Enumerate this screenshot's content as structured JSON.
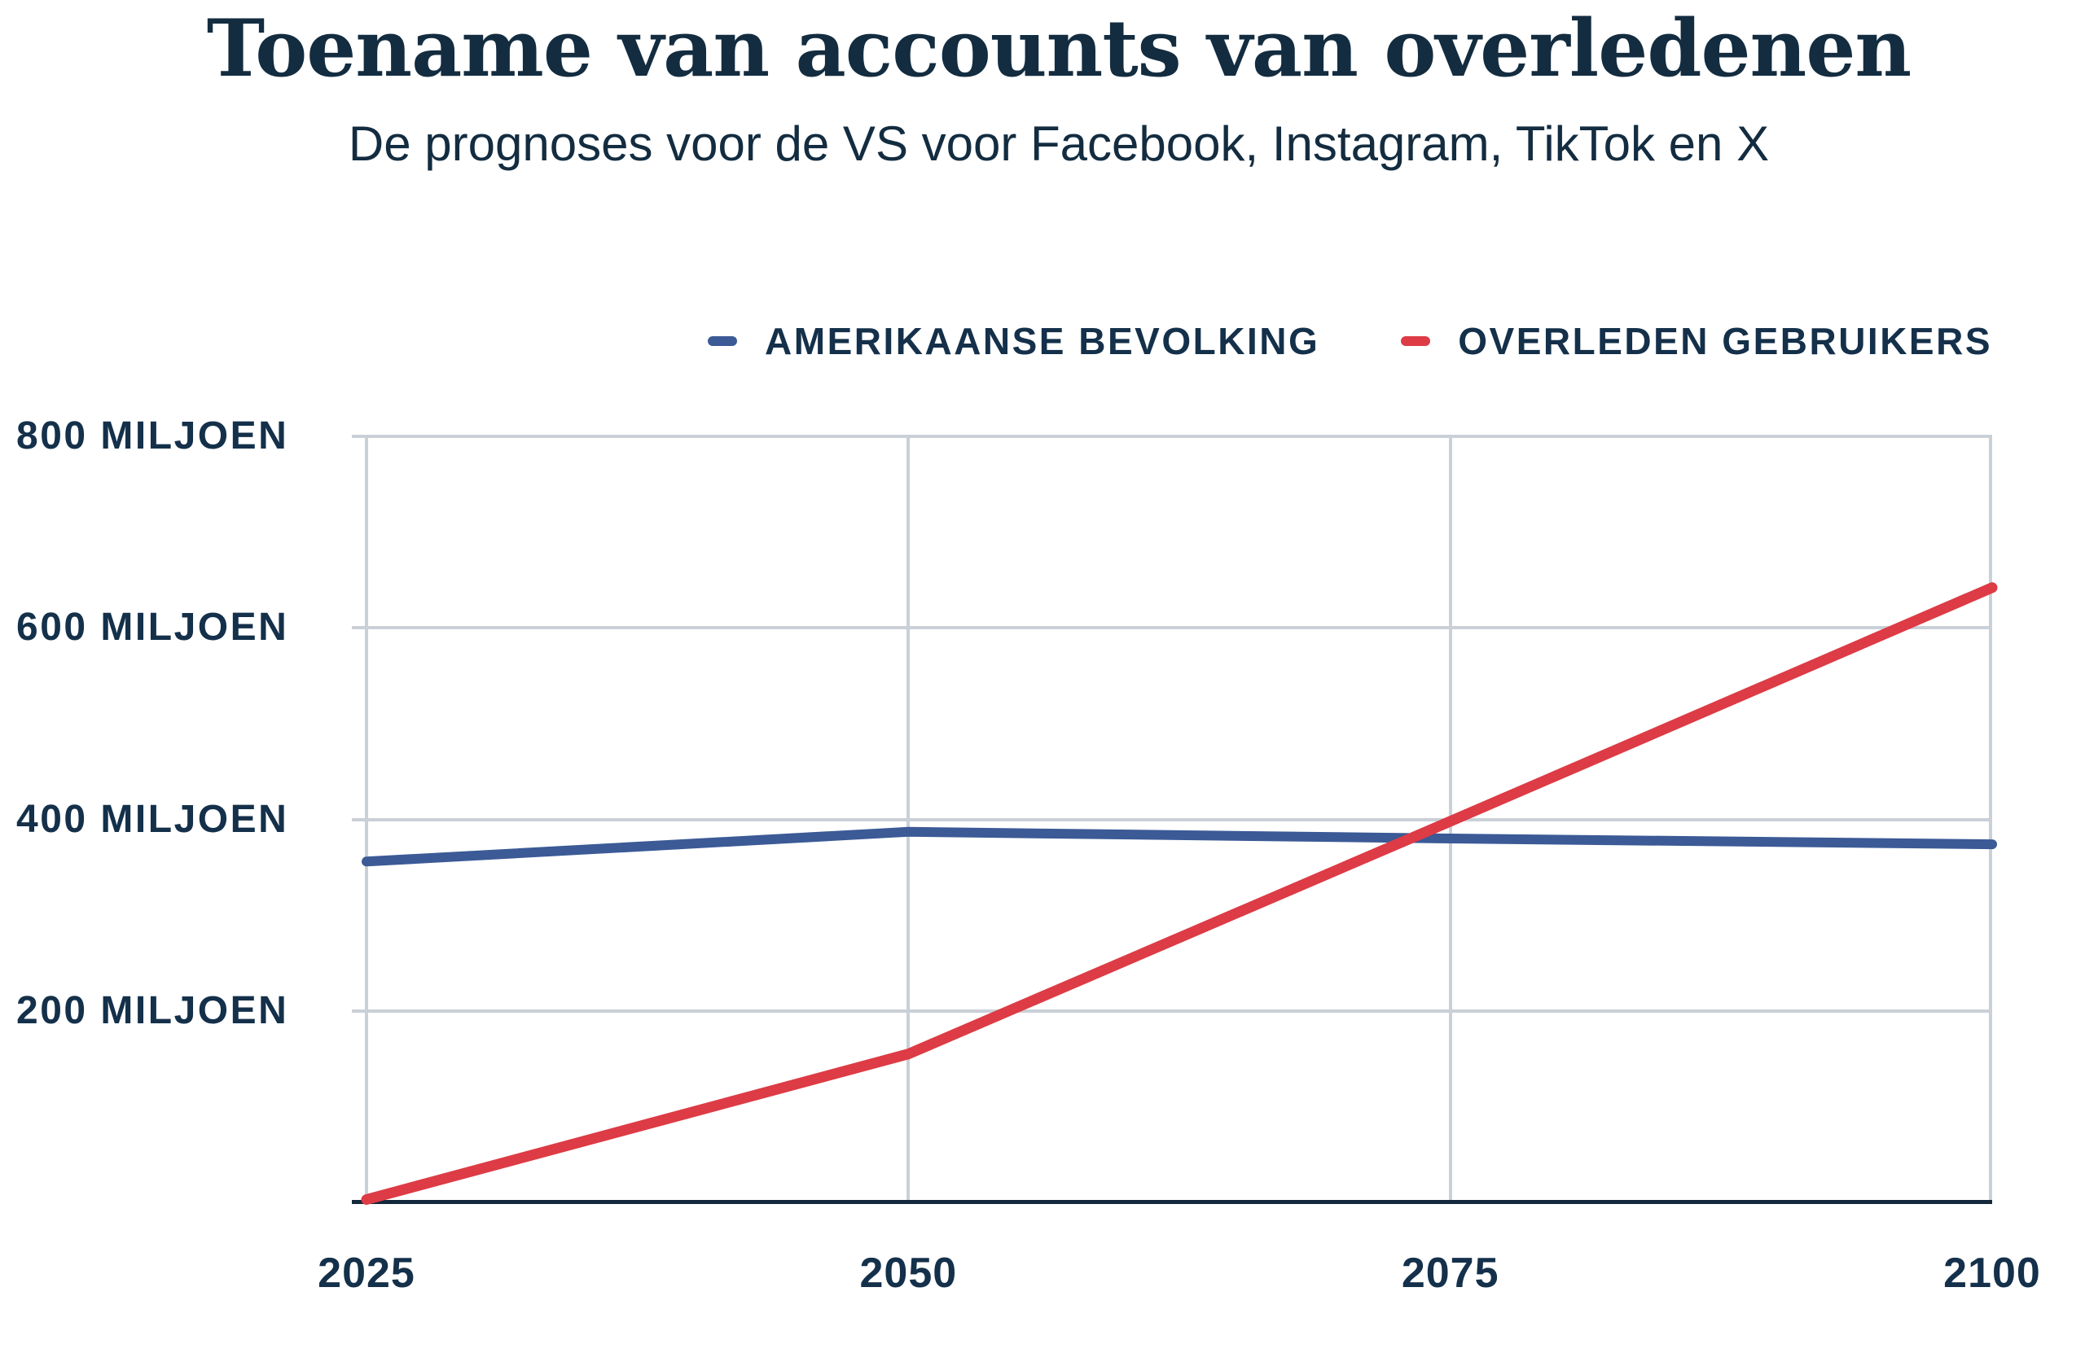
{
  "header": {
    "title": "Toename van accounts van overledenen",
    "subtitle": "De prognoses voor de VS voor Facebook, Instagram, TikTok en X"
  },
  "legend": {
    "items": [
      {
        "label": "AMERIKAANSE BEVOLKING",
        "color": "#3b5a96"
      },
      {
        "label": "OVERLEDEN GEBRUIKERS",
        "color": "#dd3b45"
      }
    ]
  },
  "colors": {
    "title_navy": "#132c40",
    "text_navy": "#14304a",
    "grid": "#cad0d7",
    "axis": "#13293b",
    "background": "#ffffff"
  },
  "chart_data": {
    "type": "line",
    "x": [
      2025,
      2050,
      2075,
      2100
    ],
    "x_tick_labels": [
      "2025",
      "2050",
      "2075",
      "2100"
    ],
    "xlim": [
      2025,
      2100
    ],
    "ylim": [
      0,
      800
    ],
    "y_unit": "miljoen",
    "y_ticks": [
      {
        "value": 800,
        "label": "800 MILJOEN"
      },
      {
        "value": 600,
        "label": "600 MILJOEN"
      },
      {
        "value": 400,
        "label": "400 MILJOEN"
      },
      {
        "value": 200,
        "label": "200 MILJOEN"
      }
    ],
    "grid": true,
    "legend_position": "top-right",
    "series": [
      {
        "name": "AMERIKAANSE BEVOLKING",
        "color": "#3b5a96",
        "stroke_width": 12,
        "values": [
          356,
          387,
          380,
          374
        ]
      },
      {
        "name": "OVERLEDEN GEBRUIKERS",
        "color": "#dd3b45",
        "stroke_width": 13,
        "values": [
          3,
          155,
          398,
          642
        ]
      }
    ]
  }
}
